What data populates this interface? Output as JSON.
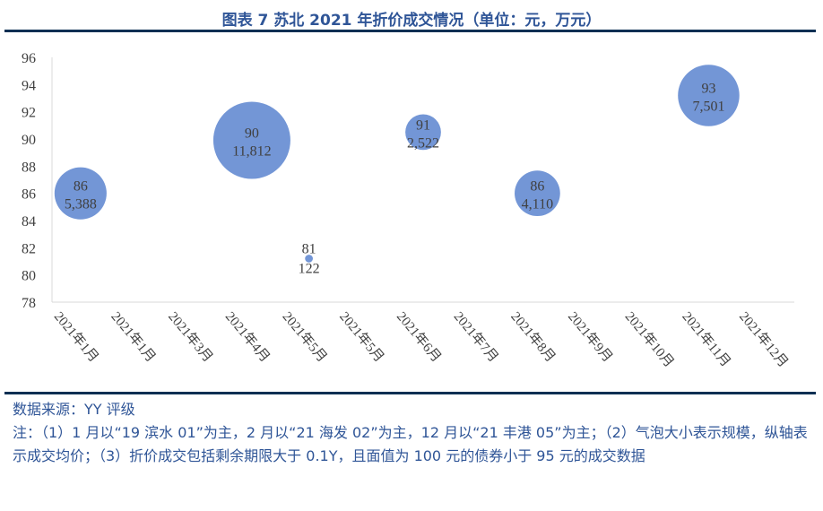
{
  "title": "图表 7 苏北 2021 年折价成交情况（单位：元，万元）",
  "source": "数据来源：YY 评级",
  "note": "注：（1）1 月以“19 滨水 01”为主，2 月以“21 海发 02”为主，12 月以“21 丰港 05”为主；（2）气泡大小表示规模，纵轴表示成交均价；（3）折价成交包括剩余期限大于 0.1Y，且面值为 100 元的债券小于 95 元的成交数据",
  "colors": {
    "bubble": "#7396d6",
    "title": "#2f5597",
    "rule": "#0b2f53"
  },
  "chart_data": {
    "type": "bubble",
    "categories": [
      "2021年1月",
      "2021年1月",
      "2021年3月",
      "2021年4月",
      "2021年5月",
      "2021年5月",
      "2021年6月",
      "2021年7月",
      "2021年8月",
      "2021年9月",
      "2021年10月",
      "2021年11月",
      "2021年12月"
    ],
    "ylim": [
      78,
      96
    ],
    "yticks": [
      78,
      80,
      82,
      84,
      86,
      88,
      90,
      92,
      94,
      96
    ],
    "grid": false,
    "points": [
      {
        "category_index": 0,
        "y": 86.0,
        "y_label": "86",
        "size": 5388,
        "size_label": "5,388"
      },
      {
        "category_index": 3,
        "y": 89.9,
        "y_label": "90",
        "size": 11812,
        "size_label": "11,812"
      },
      {
        "category_index": 4,
        "y": 81.2,
        "y_label": "81",
        "size": 122,
        "size_label": "122"
      },
      {
        "category_index": 6,
        "y": 90.5,
        "y_label": "91",
        "size": 2522,
        "size_label": "2,522"
      },
      {
        "category_index": 8,
        "y": 86.0,
        "y_label": "86",
        "size": 4110,
        "size_label": "4,110"
      },
      {
        "category_index": 11,
        "y": 93.2,
        "y_label": "93",
        "size": 7501,
        "size_label": "7,501"
      }
    ]
  }
}
